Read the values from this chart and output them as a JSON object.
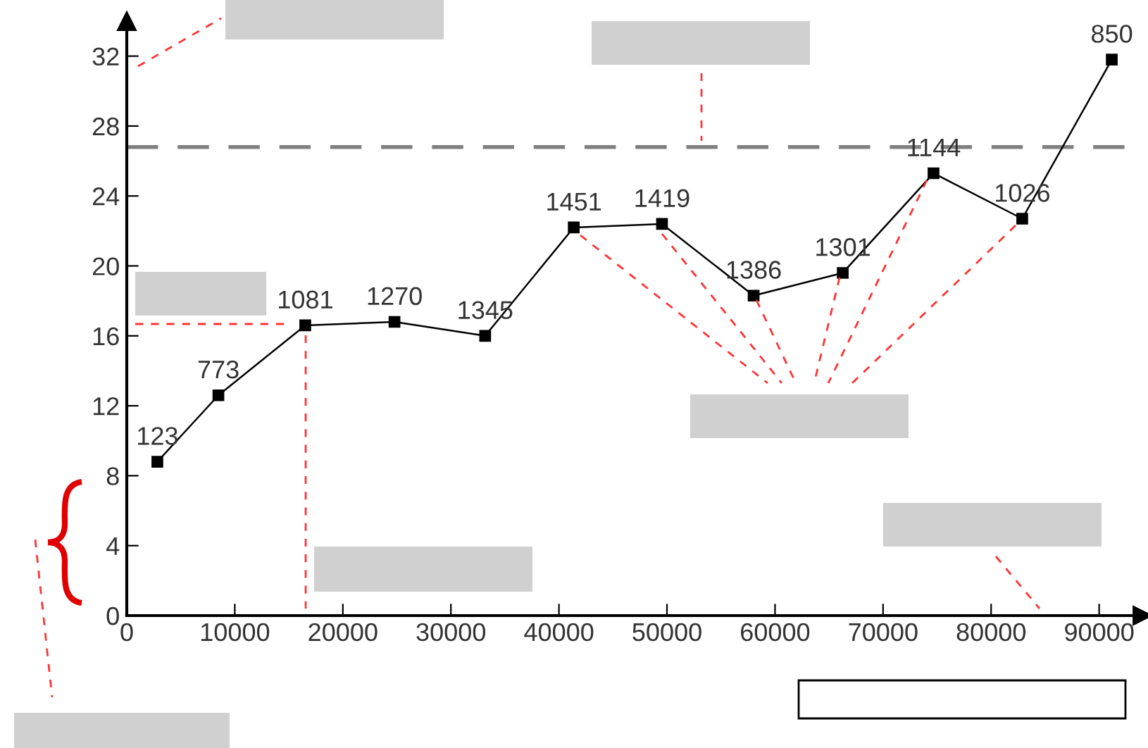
{
  "chart_data": {
    "type": "line",
    "x": [
      2830,
      8480,
      16520,
      24780,
      33170,
      41370,
      49540,
      58020,
      66270,
      74670,
      82880,
      91170
    ],
    "series": [
      {
        "color": "#000000",
        "values": [
          8.8,
          12.6,
          16.6,
          16.8,
          16.0,
          22.2,
          22.4,
          18.3,
          19.6,
          25.3,
          22.7,
          31.8
        ]
      }
    ],
    "annotations": [
      {
        "text": "123",
        "x": 2830,
        "y": 8.8
      },
      {
        "text": "773",
        "x": 8480,
        "y": 12.6
      },
      {
        "text": "1081",
        "x": 16520,
        "y": 16.6
      },
      {
        "text": "1270",
        "x": 24780,
        "y": 16.8
      },
      {
        "text": "1345",
        "x": 33170,
        "y": 16.0
      },
      {
        "text": "1451",
        "x": 41370,
        "y": 22.2
      },
      {
        "text": "1419",
        "x": 49540,
        "y": 22.4
      },
      {
        "text": "1386",
        "x": 58020,
        "y": 18.3
      },
      {
        "text": "1301",
        "x": 66270,
        "y": 19.6
      },
      {
        "text": "1144",
        "x": 74670,
        "y": 25.3
      },
      {
        "text": "1026",
        "x": 82880,
        "y": 22.7
      },
      {
        "text": "850",
        "x": 91170,
        "y": 31.8
      }
    ],
    "xlim": [
      0,
      94000
    ],
    "ylim": [
      0,
      34
    ],
    "xticks": [
      0,
      10000,
      20000,
      30000,
      40000,
      50000,
      60000,
      70000,
      80000,
      90000
    ],
    "yticks": [
      0,
      4,
      8,
      12,
      16,
      20,
      24,
      28,
      32
    ],
    "ref_lines": [
      {
        "axis": "y",
        "value": 26.8,
        "color": "#808080",
        "line_style": "dashed"
      }
    ],
    "marker": "square",
    "line_style": "solid",
    "grid": false,
    "legend": false
  }
}
